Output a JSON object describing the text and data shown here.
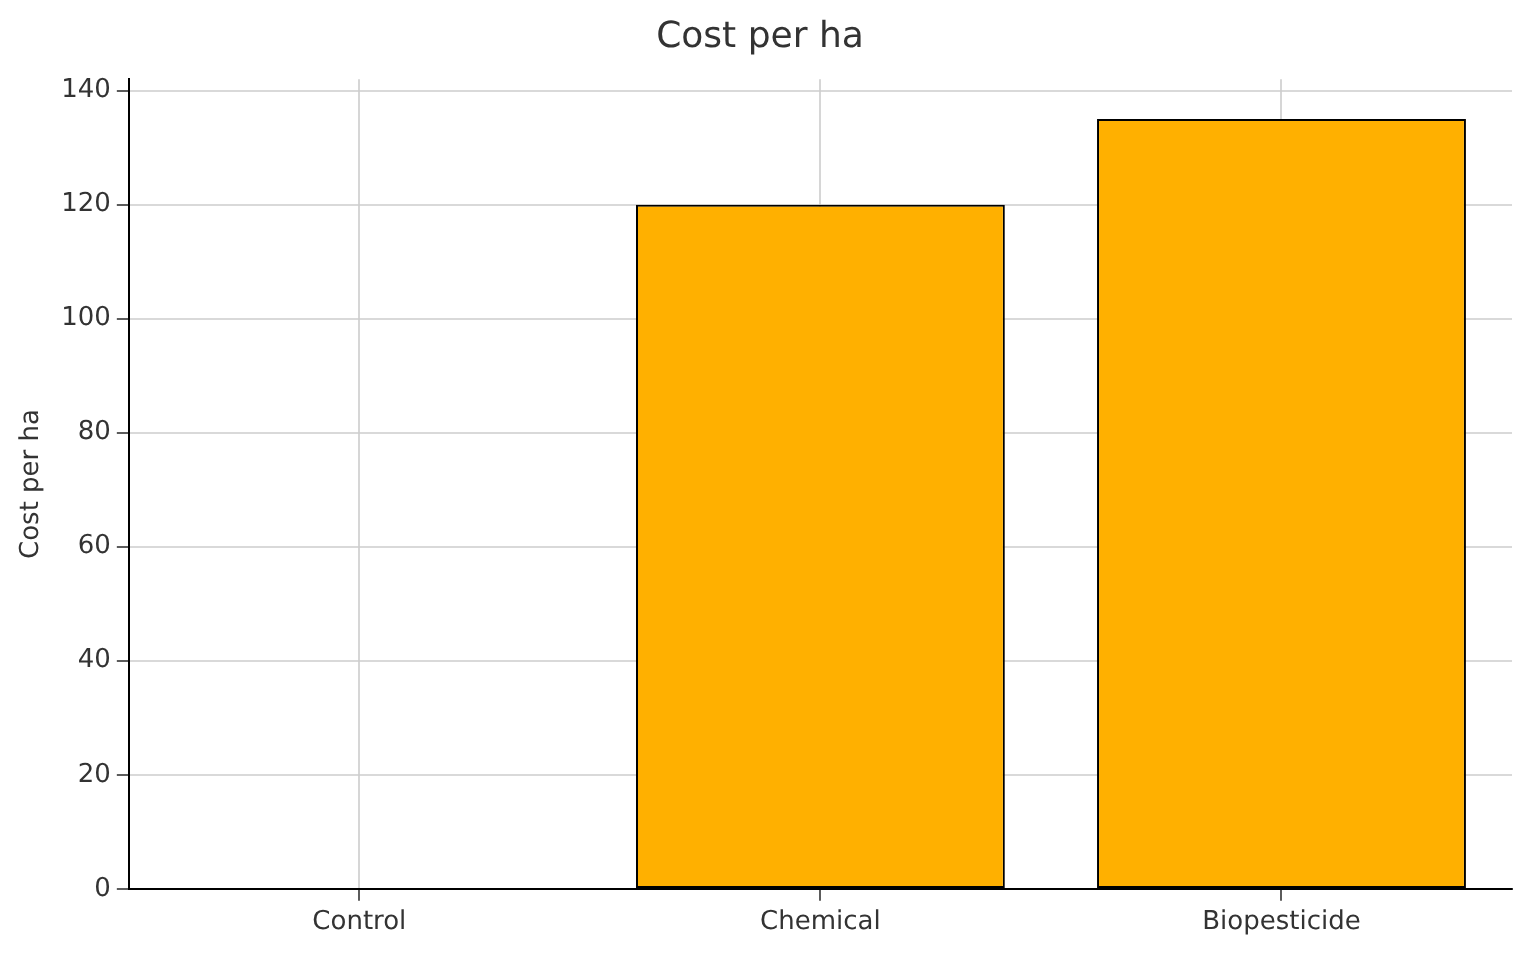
{
  "chart_data": {
    "type": "bar",
    "title": "Cost per ha",
    "ylabel": "Cost per ha",
    "categories": [
      "Control",
      "Chemical",
      "Biopesticide"
    ],
    "values": [
      0,
      120,
      135
    ],
    "color": "#ffb000",
    "ylim": [
      0,
      142
    ],
    "yticks": [
      0,
      20,
      40,
      60,
      80,
      100,
      120,
      140
    ],
    "grid": true
  }
}
